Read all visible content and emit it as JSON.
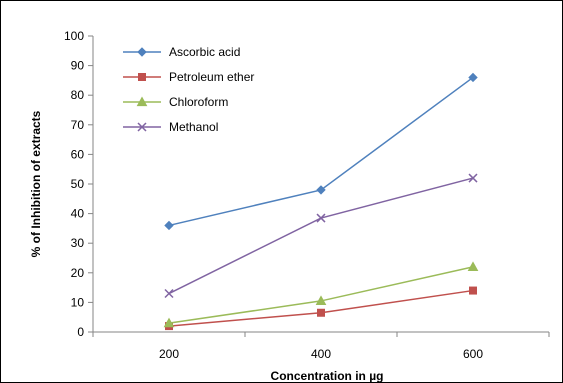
{
  "chart_data": {
    "type": "line",
    "title": "",
    "xlabel": "Concentration in µg",
    "ylabel": "% of Inhibition of extracts",
    "x": [
      "200",
      "400",
      "600"
    ],
    "ylim": [
      0,
      100
    ],
    "yticks": [
      0,
      10,
      20,
      30,
      40,
      50,
      60,
      70,
      80,
      90,
      100
    ],
    "grid": false,
    "legend_position": "top-left",
    "series": [
      {
        "name": "Ascorbic acid",
        "values": [
          36,
          48,
          86
        ],
        "color": "#4F81BD",
        "marker": "diamond"
      },
      {
        "name": "Petroleum ether",
        "values": [
          2,
          6.5,
          14
        ],
        "color": "#C0504D",
        "marker": "square"
      },
      {
        "name": "Chloroform",
        "values": [
          3,
          10.5,
          22
        ],
        "color": "#9BBB59",
        "marker": "triangle"
      },
      {
        "name": "Methanol",
        "values": [
          13,
          38.5,
          52
        ],
        "color": "#8064A2",
        "marker": "x"
      }
    ]
  }
}
